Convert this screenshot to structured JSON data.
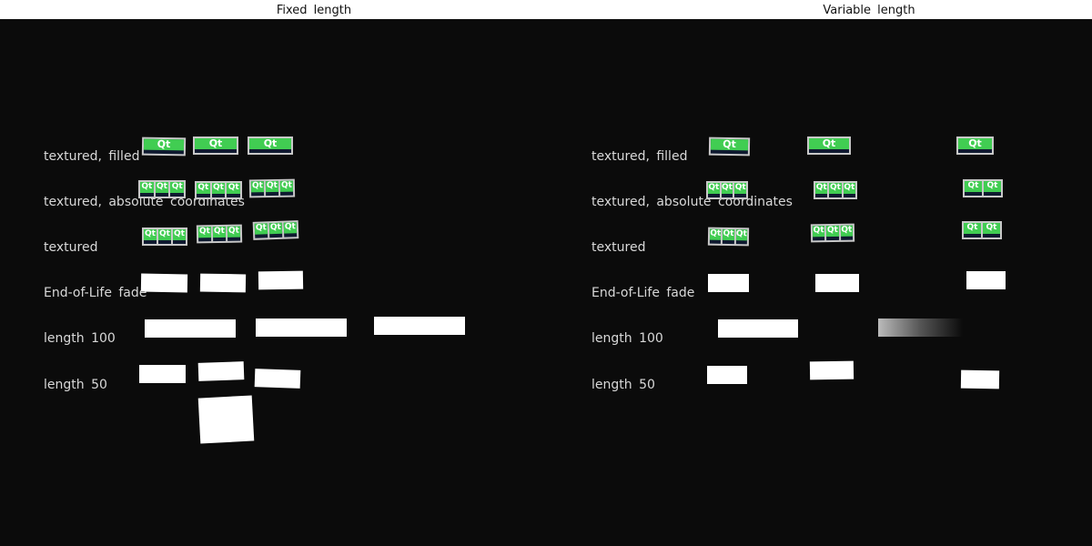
{
  "panels": [
    {
      "title": "Fixed  length",
      "rows": [
        "textured,  filled",
        "textured,  absolute  coordinates",
        "textured",
        "End-of-Life  fade",
        "length  100",
        "length  50"
      ]
    },
    {
      "title": "Variable  length",
      "rows": [
        "textured,  filled",
        "textured,  absolute  coordinates",
        "textured",
        "End-of-Life  fade",
        "length  100",
        "length  50"
      ]
    }
  ],
  "logo_text": "Qt",
  "colors": {
    "background": "#0b0b0b",
    "logo_green": "#41cd52",
    "trail": "#ffffff"
  }
}
